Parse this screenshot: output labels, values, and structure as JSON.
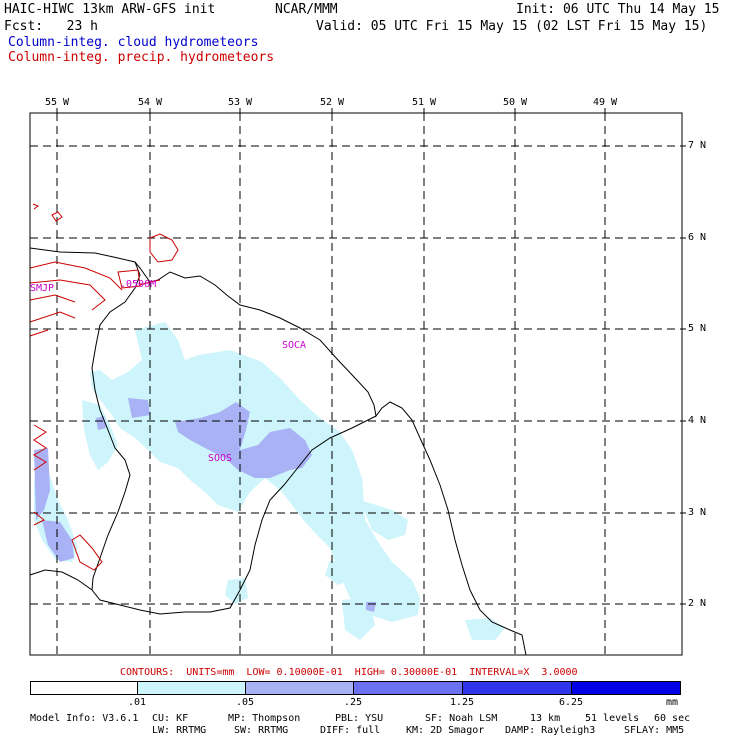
{
  "header": {
    "model": "HAIC-HIWC 13km ARW-GFS init",
    "org": "NCAR/MMM",
    "init": "Init: 06 UTC Thu 14 May 15",
    "fcst": "Fcst:   23 h",
    "valid": "Valid: 05 UTC Fri 15 May 15 (02 LST Fri 15 May 15)",
    "field1": "Column-integ. cloud hydrometeors",
    "field2": "Column-integ. precip. hydrometeors",
    "field1_color": "#0000cc",
    "field2_color": "#cc0000"
  },
  "map": {
    "lon_labels": [
      "55 W",
      "54 W",
      "53 W",
      "52 W",
      "51 W",
      "50 W",
      "49 W"
    ],
    "lat_labels": [
      "7 N",
      "6 N",
      "5 N",
      "4 N",
      "3 N",
      "2 N"
    ],
    "stations": [
      "SMJP",
      "SOCA",
      "SOOS"
    ],
    "contour_label": ".0500M",
    "station_color": "#cc00cc",
    "coast_color": "#000000",
    "contour_color": "#cc0000"
  },
  "contours_info": "CONTOURS:  UNITS=mm  LOW= 0.10000E-01  HIGH= 0.30000E-01  INTERVAL=X  3.0000",
  "colorbar": {
    "labels": [
      ".01",
      ".05",
      ".25",
      "1.25",
      "6.25"
    ],
    "units": "mm",
    "colors": [
      "#ffffff",
      "#cdf5fb",
      "#a8b2f5",
      "#6a72f2",
      "#2f36ec",
      "#0000e6"
    ]
  },
  "footer": {
    "line1": [
      "Model Info: V3.6.1",
      "CU: KF",
      "MP: Thompson",
      "PBL: YSU",
      "SF: Noah LSM",
      "13 km",
      "51 levels",
      "60 sec"
    ],
    "line2": [
      "LW: RRTMG",
      "SW: RRTMG",
      "DIFF: full",
      "KM: 2D Smagor",
      "DAMP: Rayleigh3",
      "SFLAY: MM5"
    ]
  }
}
